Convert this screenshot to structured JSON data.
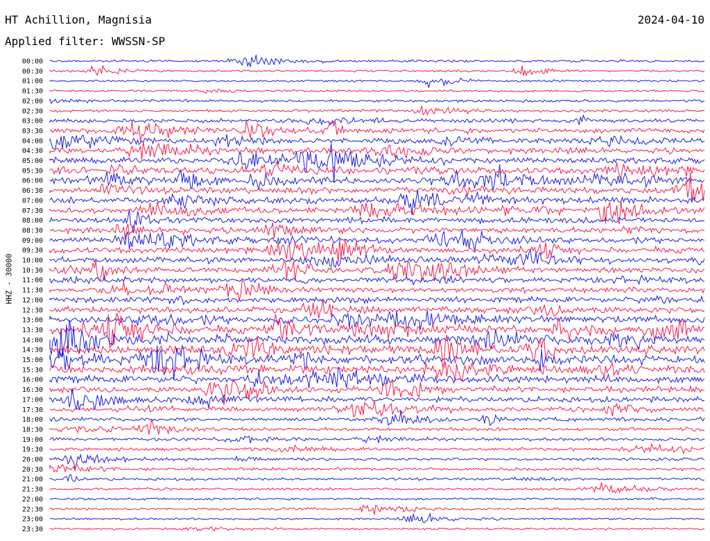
{
  "header": {
    "station": "HT Achillion, Magnisia",
    "date": "2024-04-10",
    "filter": "Applied filter: WWSSN-SP",
    "channel": "HHZ - 30000"
  },
  "colors": {
    "trace_a": "#1a1ae0",
    "trace_b": "#f5184a",
    "text": "#000000"
  },
  "chart_data": {
    "type": "helicorder",
    "title": "HT Achillion, Magnisia",
    "ylabel": "HHZ - 30000",
    "tick_labels": [
      "00:00",
      "00:30",
      "01:00",
      "01:30",
      "02:00",
      "02:30",
      "03:00",
      "03:30",
      "04:00",
      "04:30",
      "05:00",
      "05:30",
      "06:00",
      "06:30",
      "07:00",
      "07:30",
      "08:00",
      "08:30",
      "09:00",
      "09:30",
      "10:00",
      "10:30",
      "11:00",
      "11:30",
      "12:00",
      "12:30",
      "13:00",
      "13:30",
      "14:00",
      "14:30",
      "15:00",
      "15:30",
      "16:00",
      "16:30",
      "17:00",
      "17:30",
      "18:00",
      "18:30",
      "19:00",
      "19:30",
      "20:00",
      "20:30",
      "21:00",
      "21:30",
      "22:00",
      "22:30",
      "23:00",
      "23:30"
    ],
    "rows": 48,
    "row_minutes": 30,
    "activity": [
      0.15,
      0.15,
      0.12,
      0.12,
      0.2,
      0.2,
      0.4,
      0.5,
      0.6,
      0.6,
      0.65,
      0.75,
      0.8,
      0.65,
      0.65,
      0.65,
      0.6,
      0.6,
      0.6,
      0.65,
      0.6,
      0.55,
      0.55,
      0.5,
      0.6,
      0.7,
      0.8,
      0.9,
      1.0,
      1.0,
      0.95,
      0.9,
      0.8,
      0.65,
      0.55,
      0.45,
      0.35,
      0.3,
      0.25,
      0.25,
      0.22,
      0.22,
      0.2,
      0.18,
      0.15,
      0.15,
      0.12,
      0.12
    ]
  }
}
